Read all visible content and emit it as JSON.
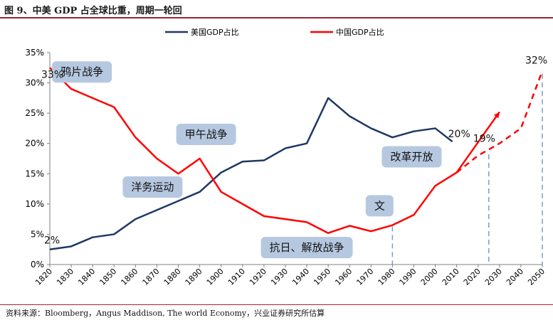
{
  "figure": {
    "title": "图 9、中美 GDP 占全球比重，周期一轮回",
    "source": "资料来源：Bloomberg，Angus Maddison, The world Economy，兴业证券研究所估算"
  },
  "chart_data": {
    "type": "line",
    "x": [
      1820,
      1830,
      1840,
      1850,
      1860,
      1870,
      1880,
      1890,
      1900,
      1910,
      1920,
      1930,
      1940,
      1950,
      1960,
      1970,
      1980,
      1990,
      2000,
      2010,
      2020,
      2030,
      2040,
      2050
    ],
    "ylim": [
      0,
      35
    ],
    "yticks": [
      "0%",
      "5%",
      "10%",
      "15%",
      "20%",
      "25%",
      "30%",
      "35%"
    ],
    "series": [
      {
        "name": "美国GDP占比",
        "color": "#1f3864",
        "points": [
          [
            1820,
            2.5
          ],
          [
            1830,
            3.0
          ],
          [
            1840,
            4.5
          ],
          [
            1850,
            5.0
          ],
          [
            1860,
            7.5
          ],
          [
            1870,
            9.0
          ],
          [
            1880,
            10.5
          ],
          [
            1890,
            12.0
          ],
          [
            1900,
            15.2
          ],
          [
            1910,
            17.0
          ],
          [
            1920,
            17.2
          ],
          [
            1930,
            19.2
          ],
          [
            1940,
            20.0
          ],
          [
            1950,
            27.5
          ],
          [
            1960,
            24.5
          ],
          [
            1970,
            22.5
          ],
          [
            1980,
            21.0
          ],
          [
            1990,
            22.0
          ],
          [
            2000,
            22.5
          ],
          [
            2008,
            20.3
          ]
        ]
      },
      {
        "name": "中国GDP占比",
        "color": "#ff0000",
        "points": [
          [
            1820,
            32.5
          ],
          [
            1830,
            29.0
          ],
          [
            1840,
            27.5
          ],
          [
            1850,
            26.0
          ],
          [
            1860,
            21.0
          ],
          [
            1870,
            17.5
          ],
          [
            1880,
            15.0
          ],
          [
            1890,
            17.5
          ],
          [
            1900,
            12.0
          ],
          [
            1910,
            10.0
          ],
          [
            1920,
            8.0
          ],
          [
            1930,
            7.5
          ],
          [
            1940,
            7.0
          ],
          [
            1950,
            5.2
          ],
          [
            1960,
            6.4
          ],
          [
            1970,
            5.5
          ],
          [
            1980,
            6.5
          ],
          [
            1990,
            8.2
          ],
          [
            2000,
            13.0
          ],
          [
            2010,
            15.2
          ]
        ],
        "projection": [
          [
            2010,
            15.2
          ],
          [
            2030,
            25.2
          ]
        ],
        "forecast": [
          [
            2010,
            15.2
          ],
          [
            2020,
            18.0
          ],
          [
            2030,
            20.0
          ],
          [
            2040,
            22.5
          ],
          [
            2050,
            32.0
          ]
        ]
      }
    ],
    "markers": [
      1980,
      2025,
      2050
    ],
    "data_labels": [
      {
        "text": "33%",
        "x": 1820,
        "y": 32.5
      },
      {
        "text": "2%",
        "x": 1820,
        "y": 2.5
      },
      {
        "text": "20%",
        "x": 2008,
        "y": 20.3
      },
      {
        "text": "19%",
        "x": 2025,
        "y": 18.6
      },
      {
        "text": "32%",
        "x": 2050,
        "y": 32.0
      }
    ],
    "annotations": [
      {
        "text": "鸦片战争",
        "x": 1835,
        "y": 31.8
      },
      {
        "text": "甲午战争",
        "x": 1893,
        "y": 21.5
      },
      {
        "text": "洋务运动",
        "x": 1868,
        "y": 12.8
      },
      {
        "text": "改革开放",
        "x": 1989,
        "y": 17.8
      },
      {
        "text": "文",
        "x": 1974,
        "y": 9.7
      },
      {
        "text": "抗日、解放战争",
        "x": 1940,
        "y": 2.8
      }
    ]
  }
}
